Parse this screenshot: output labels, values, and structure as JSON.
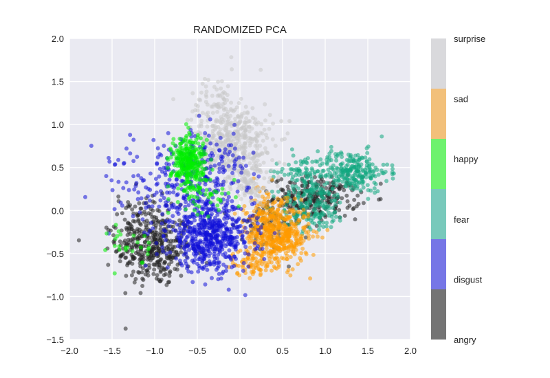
{
  "chart_data": {
    "type": "scatter",
    "title": "RANDOMIZED PCA",
    "xlabel": "",
    "ylabel": "",
    "xlim": [
      -2.0,
      2.0
    ],
    "ylim": [
      -1.5,
      2.0
    ],
    "x_ticks": [
      -2.0,
      -1.5,
      -1.0,
      -0.5,
      0.0,
      0.5,
      1.0,
      1.5,
      2.0
    ],
    "y_ticks": [
      -1.5,
      -1.0,
      -0.5,
      0.0,
      0.5,
      1.0,
      1.5,
      2.0
    ],
    "x_tick_labels": [
      "−2.0",
      "−1.5",
      "−1.0",
      "−0.5",
      "0.0",
      "0.5",
      "1.0",
      "1.5",
      "2.0"
    ],
    "y_tick_labels": [
      "−1.5",
      "−1.0",
      "−0.5",
      "0.0",
      "0.5",
      "1.0",
      "1.5",
      "2.0"
    ],
    "grid": true,
    "background": "#eaeaf2",
    "colorbar": {
      "labels": [
        "surprise",
        "sad",
        "happy",
        "fear",
        "disgust",
        "angry"
      ],
      "colors": [
        "#d9d9dc",
        "#f2c07a",
        "#6ef26e",
        "#78c9bb",
        "#7676e6",
        "#747474"
      ]
    },
    "series": [
      {
        "name": "angry",
        "color": "#222222",
        "clusters": [
          {
            "cx": -1.0,
            "cy": -0.45,
            "sx": 0.22,
            "sy": 0.22,
            "n": 330
          },
          {
            "cx": -1.2,
            "cy": -0.15,
            "sx": 0.15,
            "sy": 0.18,
            "n": 90
          },
          {
            "cx": 0.9,
            "cy": 0.15,
            "sx": 0.25,
            "sy": 0.12,
            "n": 240
          },
          {
            "cx": 0.3,
            "cy": -0.2,
            "sx": 0.2,
            "sy": 0.15,
            "n": 70
          }
        ]
      },
      {
        "name": "fear",
        "color": "#10a880",
        "clusters": [
          {
            "cx": 1.3,
            "cy": 0.45,
            "sx": 0.22,
            "sy": 0.12,
            "n": 260
          },
          {
            "cx": 0.85,
            "cy": 0.05,
            "sx": 0.2,
            "sy": 0.15,
            "n": 170
          },
          {
            "cx": 0.7,
            "cy": 0.45,
            "sx": 0.15,
            "sy": 0.12,
            "n": 60
          }
        ]
      },
      {
        "name": "sad",
        "color": "#ff9a00",
        "clusters": [
          {
            "cx": 0.45,
            "cy": -0.3,
            "sx": 0.18,
            "sy": 0.17,
            "n": 450
          },
          {
            "cx": 0.3,
            "cy": 0.0,
            "sx": 0.12,
            "sy": 0.15,
            "n": 100
          },
          {
            "cx": 0.1,
            "cy": -0.6,
            "sx": 0.1,
            "sy": 0.08,
            "n": 60
          }
        ]
      },
      {
        "name": "surprise",
        "color": "#c8c8c8",
        "clusters": [
          {
            "cx": -0.05,
            "cy": 0.75,
            "sx": 0.22,
            "sy": 0.25,
            "n": 420
          },
          {
            "cx": -0.3,
            "cy": 1.2,
            "sx": 0.15,
            "sy": 0.2,
            "n": 90
          },
          {
            "cx": 0.1,
            "cy": 0.3,
            "sx": 0.15,
            "sy": 0.15,
            "n": 80
          }
        ]
      },
      {
        "name": "disgust",
        "color": "#1010d8",
        "clusters": [
          {
            "cx": -0.35,
            "cy": -0.3,
            "sx": 0.25,
            "sy": 0.2,
            "n": 580
          },
          {
            "cx": -0.8,
            "cy": 0.3,
            "sx": 0.25,
            "sy": 0.25,
            "n": 160
          },
          {
            "cx": -0.3,
            "cy": 0.5,
            "sx": 0.2,
            "sy": 0.2,
            "n": 120
          },
          {
            "cx": -1.4,
            "cy": 0.4,
            "sx": 0.15,
            "sy": 0.3,
            "n": 20
          }
        ]
      },
      {
        "name": "happy",
        "color": "#00ee00",
        "clusters": [
          {
            "cx": -0.6,
            "cy": 0.55,
            "sx": 0.1,
            "sy": 0.17,
            "n": 320
          },
          {
            "cx": -1.3,
            "cy": -0.4,
            "sx": 0.12,
            "sy": 0.12,
            "n": 25
          },
          {
            "cx": -0.3,
            "cy": 0.15,
            "sx": 0.15,
            "sy": 0.12,
            "n": 30
          }
        ]
      }
    ]
  }
}
